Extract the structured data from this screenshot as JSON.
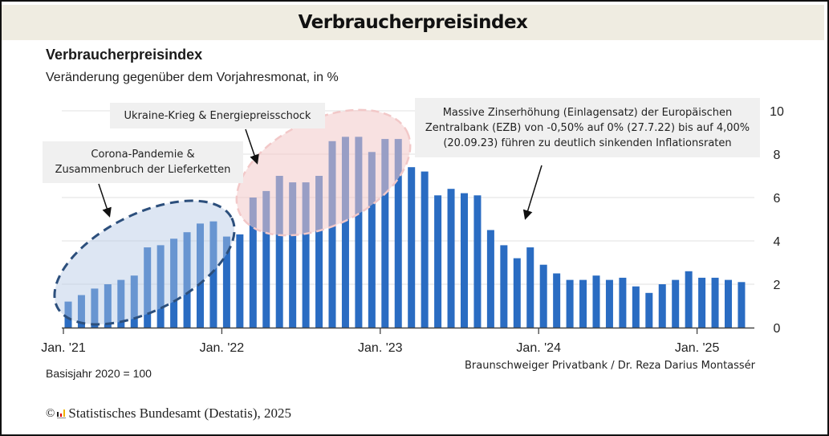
{
  "banner": {
    "title": "Verbraucherpreisindex"
  },
  "chart_data": {
    "type": "bar",
    "title": "Verbraucherpreisindex",
    "subtitle": "Veränderung gegenüber dem Vorjahresmonat, in %",
    "xlabel": "",
    "ylabel": "",
    "ylim": [
      0,
      10
    ],
    "yticks": [
      0,
      2,
      4,
      6,
      8,
      10
    ],
    "grid": true,
    "y_axis_side": "right",
    "xtick_labels": [
      "Jan. '21",
      "Jan. '22",
      "Jan. '23",
      "Jan. '24",
      "Jan. '25"
    ],
    "xtick_indices": [
      0,
      12,
      24,
      36,
      48
    ],
    "categories": [
      "2021-01",
      "2021-02",
      "2021-03",
      "2021-04",
      "2021-05",
      "2021-06",
      "2021-07",
      "2021-08",
      "2021-09",
      "2021-10",
      "2021-11",
      "2021-12",
      "2022-01",
      "2022-02",
      "2022-03",
      "2022-04",
      "2022-05",
      "2022-06",
      "2022-07",
      "2022-08",
      "2022-09",
      "2022-10",
      "2022-11",
      "2022-12",
      "2023-01",
      "2023-02",
      "2023-03",
      "2023-04",
      "2023-05",
      "2023-06",
      "2023-07",
      "2023-08",
      "2023-09",
      "2023-10",
      "2023-11",
      "2023-12",
      "2024-01",
      "2024-02",
      "2024-03",
      "2024-04",
      "2024-05",
      "2024-06",
      "2024-07",
      "2024-08",
      "2024-09",
      "2024-10",
      "2024-11",
      "2024-12",
      "2025-01",
      "2025-02",
      "2025-03",
      "2025-04"
    ],
    "values": [
      1.2,
      1.5,
      1.8,
      2.0,
      2.2,
      2.4,
      3.7,
      3.8,
      4.1,
      4.4,
      4.8,
      4.9,
      4.2,
      4.3,
      6.0,
      6.3,
      7.0,
      6.7,
      6.7,
      7.0,
      8.6,
      8.8,
      8.8,
      8.1,
      8.7,
      8.7,
      7.4,
      7.2,
      6.1,
      6.4,
      6.2,
      6.1,
      4.5,
      3.8,
      3.2,
      3.7,
      2.9,
      2.5,
      2.2,
      2.2,
      2.4,
      2.2,
      2.3,
      1.9,
      1.6,
      2.0,
      2.2,
      2.6,
      2.3,
      2.3,
      2.2,
      2.1
    ],
    "bar_color": "#2a6cc2",
    "annotations": [
      {
        "text": "Corona-Pandemie & Zusammenbruch der Lieferketten",
        "lines": [
          "Corona-Pandemie &",
          "Zusammenbruch der Lieferketten"
        ],
        "highlight": "blue dashed ellipse",
        "range": [
          "2021-01",
          "2021-12"
        ]
      },
      {
        "text": "Ukraine-Krieg & Energiepreisschock",
        "lines": [
          "Ukraine-Krieg & Energiepreisschock"
        ],
        "highlight": "pink dashed ellipse",
        "range": [
          "2022-03",
          "2023-01"
        ]
      },
      {
        "text": "Massive Zinserhöhung (Einlagensatz) der Europäischen Zentralbank (EZB) von -0,50% auf 0% (27.7.22) bis auf 4,00% (20.09.23) führen zu deutlich sinkenden Inflationsraten",
        "lines": [
          "Massive Zinserhöhung (Einlagensatz) der Europäischen",
          "Zentralbank (EZB) von -0,50% auf 0% (27.7.22) bis auf 4,00%",
          "(20.09.23) führen zu deutlich sinkenden Inflationsraten"
        ],
        "arrow_target": "2023-10"
      }
    ],
    "footnote": "Basisjahr 2020 = 100"
  },
  "author": "Braunschweiger Privatbank / Dr. Reza Darius Montassér",
  "source": {
    "copyright": "©",
    "text": "Statistisches Bundesamt (Destatis), 2025"
  },
  "colors": {
    "banner_bg": "#efece1",
    "bar": "#2a6cc2",
    "annotation_bg": "#f0f0f0",
    "ellipse_blue": "#2c4f7c",
    "ellipse_pink": "#f2c8c8"
  }
}
